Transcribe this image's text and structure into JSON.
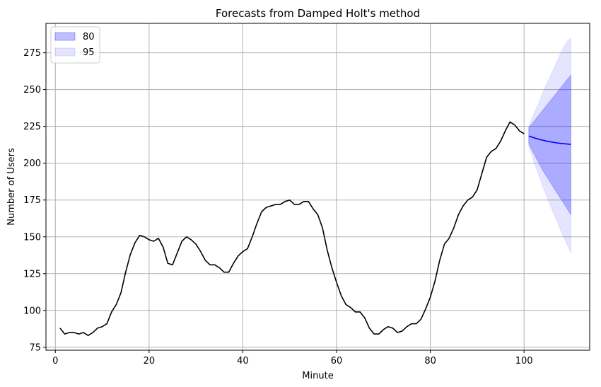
{
  "chart_data": {
    "type": "line",
    "title": "Forecasts from Damped Holt's method",
    "xlabel": "Minute",
    "ylabel": "Number of Users",
    "xlim": [
      -2,
      114
    ],
    "ylim": [
      73,
      295
    ],
    "xticks": [
      0,
      20,
      40,
      60,
      80,
      100
    ],
    "yticks": [
      75,
      100,
      125,
      150,
      175,
      200,
      225,
      250,
      275
    ],
    "grid": true,
    "legend_position": "top-left",
    "colors": {
      "observed": "#000000",
      "forecast": "#0000ff",
      "band80": "#0000ff",
      "band95": "#0000ff"
    },
    "series": [
      {
        "role": "observed",
        "x": [
          1,
          2,
          3,
          4,
          5,
          6,
          7,
          8,
          9,
          10,
          11,
          12,
          13,
          14,
          15,
          16,
          17,
          18,
          19,
          20,
          21,
          22,
          23,
          24,
          25,
          26,
          27,
          28,
          29,
          30,
          31,
          32,
          33,
          34,
          35,
          36,
          37,
          38,
          39,
          40,
          41,
          42,
          43,
          44,
          45,
          46,
          47,
          48,
          49,
          50,
          51,
          52,
          53,
          54,
          55,
          56,
          57,
          58,
          59,
          60,
          61,
          62,
          63,
          64,
          65,
          66,
          67,
          68,
          69,
          70,
          71,
          72,
          73,
          74,
          75,
          76,
          77,
          78,
          79,
          80,
          81,
          82,
          83,
          84,
          85,
          86,
          87,
          88,
          89,
          90,
          91,
          92,
          93,
          94,
          95,
          96,
          97,
          98,
          99,
          100
        ],
        "values": [
          88,
          84,
          85,
          85,
          84,
          85,
          83,
          85,
          88,
          89,
          91,
          99,
          104,
          112,
          126,
          138,
          146,
          151,
          150,
          148,
          147,
          149,
          143,
          132,
          131,
          139,
          147,
          150,
          148,
          145,
          140,
          134,
          131,
          131,
          129,
          126,
          126,
          132,
          137,
          140,
          142,
          150,
          159,
          167,
          170,
          171,
          172,
          172,
          174,
          175,
          172,
          172,
          174,
          174,
          169,
          165,
          156,
          141,
          129,
          119,
          110,
          104,
          102,
          99,
          99,
          95,
          88,
          84,
          84,
          87,
          89,
          88,
          85,
          86,
          89,
          91,
          91,
          94,
          101,
          109,
          120,
          134,
          145,
          149,
          156,
          165,
          171,
          175,
          177,
          182,
          193,
          204,
          208,
          210,
          215,
          222,
          228,
          226,
          222,
          220
        ]
      },
      {
        "role": "forecast",
        "x": [
          101,
          102,
          103,
          104,
          105,
          106,
          107,
          108,
          109,
          110
        ],
        "values": [
          218.5,
          217.4,
          216.4,
          215.6,
          214.9,
          214.3,
          213.8,
          213.4,
          213.1,
          212.8
        ]
      }
    ],
    "bands": [
      {
        "name": "80",
        "x": [
          101,
          102,
          103,
          104,
          105,
          106,
          107,
          108,
          109,
          110
        ],
        "lower": [
          213,
          207,
          201,
          195,
          190,
          185,
          180,
          175,
          170,
          165
        ],
        "upper": [
          224,
          228,
          232,
          236,
          240,
          244,
          248,
          252,
          256,
          260
        ]
      },
      {
        "name": "95",
        "x": [
          101,
          102,
          103,
          104,
          105,
          106,
          107,
          108,
          109,
          110
        ],
        "lower": [
          212,
          202,
          193,
          184,
          176,
          168,
          161,
          153,
          146,
          139
        ],
        "upper": [
          225,
          233,
          240,
          248,
          255,
          262,
          269,
          276,
          282,
          285
        ]
      }
    ]
  }
}
